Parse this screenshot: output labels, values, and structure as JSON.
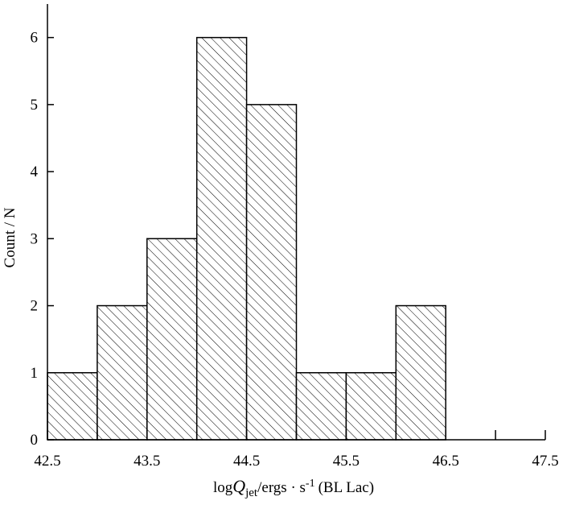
{
  "chart_data": {
    "type": "histogram",
    "bins": [
      42.5,
      43,
      43.5,
      44,
      44.5,
      45,
      45.5,
      46,
      46.5
    ],
    "values": [
      1,
      2,
      3,
      6,
      5,
      1,
      1,
      2
    ],
    "color": "#000000",
    "hatch": "diagonal",
    "xlim": [
      42.5,
      47.5
    ],
    "xticks": [
      42.5,
      43.5,
      44.5,
      45.5,
      46.5,
      47.5
    ],
    "xticks_minor": [
      43,
      44,
      45,
      46,
      47
    ],
    "ylim": [
      0,
      6.5
    ],
    "yticks": [
      0,
      1,
      2,
      3,
      4,
      5,
      6
    ],
    "xlabel": {
      "prefix": "log",
      "symbol": "Q",
      "subscript": "jet",
      "middle": "/ergs · s",
      "superscript": "-1",
      "suffix": "(BL Lac)"
    },
    "ylabel": "Count / N"
  }
}
